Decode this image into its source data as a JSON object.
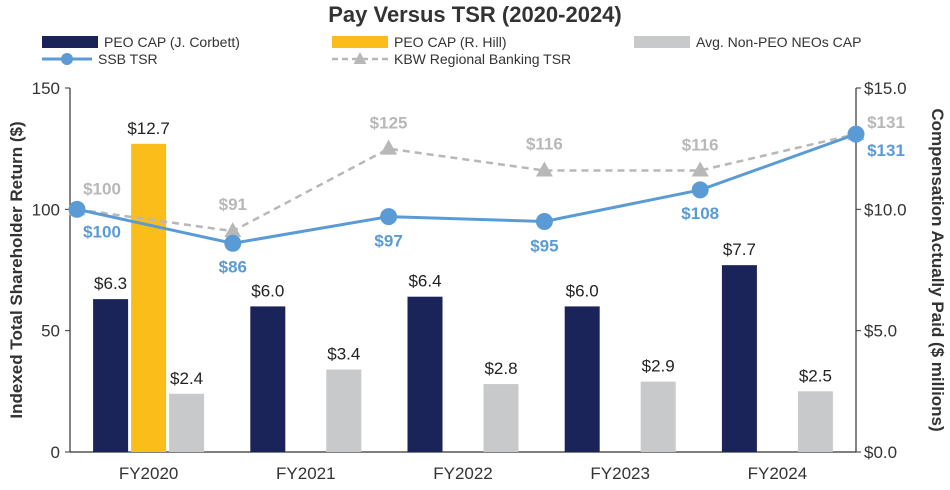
{
  "chart_data": {
    "type": "bar",
    "title": "Pay Versus TSR (2020-2024)",
    "categories": [
      "FY2020",
      "FY2021",
      "FY2022",
      "FY2023",
      "FY2024"
    ],
    "bar_series": [
      {
        "name": "PEO CAP (J. Corbett)",
        "color": "#1b2458",
        "values": [
          6.3,
          6.0,
          6.4,
          6.0,
          7.7
        ],
        "labels": [
          "$6.3",
          "$6.0",
          "$6.4",
          "$6.0",
          "$7.7"
        ]
      },
      {
        "name": "PEO CAP (R. Hill)",
        "color": "#fbbd19",
        "values": [
          12.7,
          null,
          null,
          null,
          null
        ],
        "labels": [
          "$12.7",
          null,
          null,
          null,
          null
        ]
      },
      {
        "name": "Avg. Non-PEO NEOs CAP",
        "color": "#c8c9cb",
        "values": [
          2.4,
          3.4,
          2.8,
          2.9,
          2.5
        ],
        "labels": [
          "$2.4",
          "$3.4",
          "$2.8",
          "$2.9",
          "$2.5"
        ]
      }
    ],
    "line_series": [
      {
        "name": "SSB TSR",
        "color": "#5b9bd5",
        "values": [
          100,
          86,
          97,
          95,
          108,
          131
        ],
        "labels": [
          "$100",
          "$86",
          "$97",
          "$95",
          "$108",
          "$131"
        ]
      },
      {
        "name": "KBW Regional Banking TSR",
        "color": "#b8b8b8",
        "values": [
          100,
          91,
          125,
          116,
          116,
          131
        ],
        "labels": [
          "$100",
          "$91",
          "$125",
          "$116",
          "$116",
          "$131"
        ]
      }
    ],
    "y_left": {
      "label": "Indexed Total Shareholder Return ($)",
      "lim": [
        0,
        150
      ],
      "ticks": [
        "0",
        "50",
        "100",
        "150"
      ]
    },
    "y_right": {
      "label": "Compensation Actually Paid ($ millions)",
      "lim": [
        0,
        15
      ],
      "ticks": [
        "$0.0",
        "$5.0",
        "$10.0",
        "$15.0"
      ]
    },
    "legend": {
      "row1": [
        "PEO CAP (J. Corbett)",
        "PEO CAP (R. Hill)",
        "Avg. Non-PEO NEOs CAP"
      ],
      "row2": [
        "SSB TSR",
        "KBW Regional Banking TSR"
      ]
    }
  }
}
